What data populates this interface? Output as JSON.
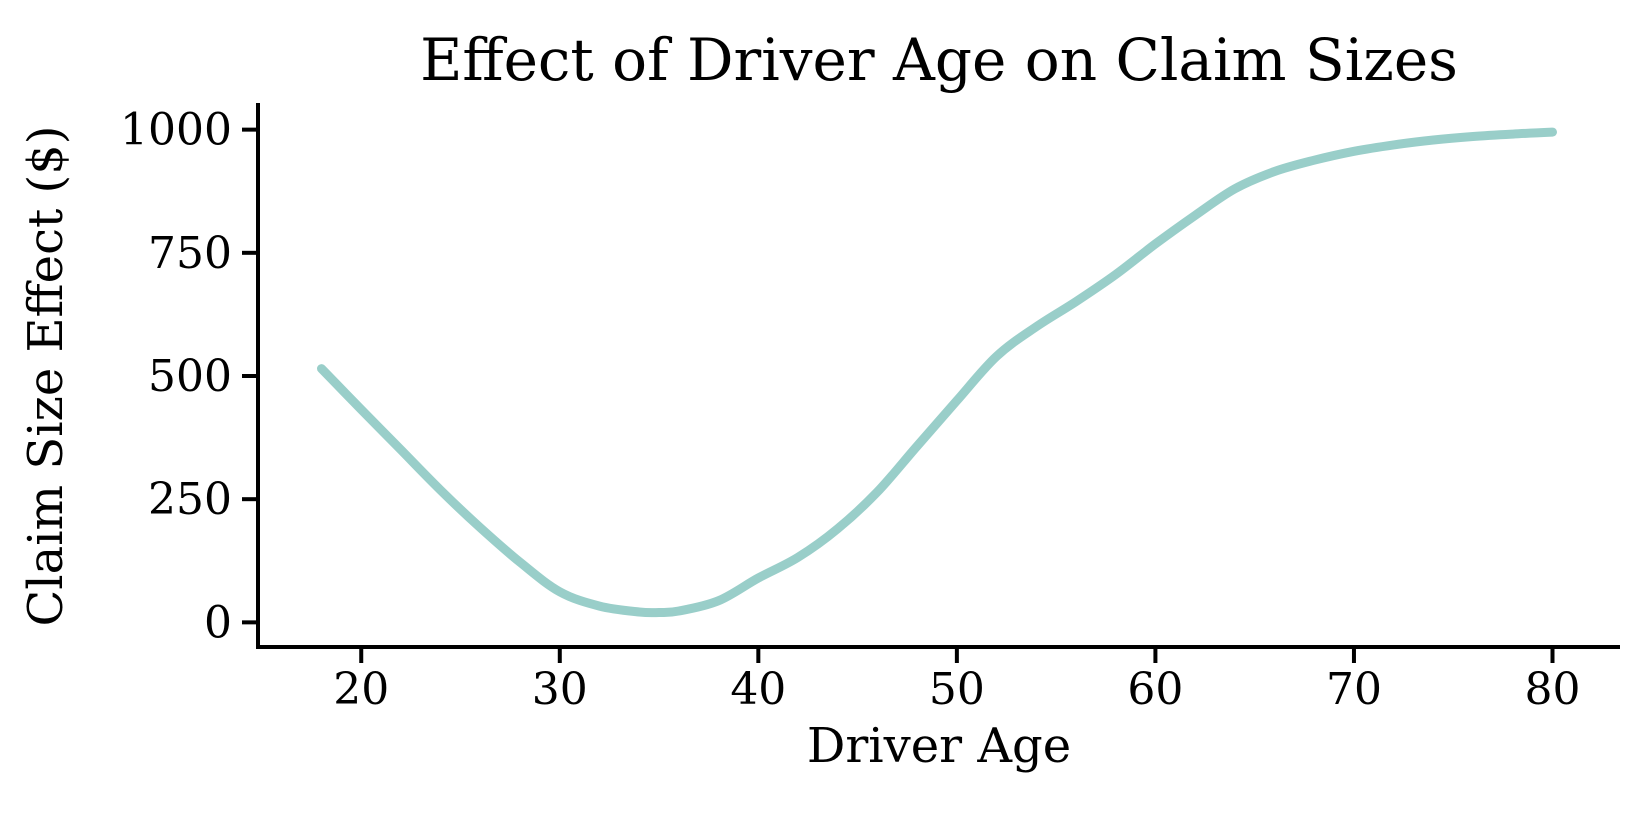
{
  "figure": {
    "title": "Effect of Driver Age on Claim Sizes",
    "xlabel": "Driver Age",
    "ylabel": "Claim Size Effect ($)"
  },
  "colors": {
    "line": "#99cec9",
    "axis": "#000000",
    "text": "#000000",
    "background": "#ffffff"
  },
  "chart_data": {
    "type": "line",
    "title": "Effect of Driver Age on Claim Sizes",
    "xlabel": "Driver Age",
    "ylabel": "Claim Size Effect ($)",
    "x_ticks": [
      20,
      30,
      40,
      50,
      60,
      70,
      80
    ],
    "y_ticks": [
      0,
      250,
      500,
      750,
      1000
    ],
    "xlim": [
      14.8,
      83.4
    ],
    "ylim": [
      -50,
      1050
    ],
    "grid": false,
    "legend_position": "none",
    "series": [
      {
        "name": "claim_size_effect_vs_age",
        "color": "#99cec9",
        "line_width": 9,
        "x": [
          18,
          20,
          22,
          24,
          26,
          28,
          30,
          32,
          34,
          35,
          36,
          38,
          40,
          42,
          44,
          46,
          48,
          50,
          52,
          54,
          56,
          58,
          60,
          62,
          64,
          66,
          68,
          70,
          72,
          74,
          76,
          78,
          80
        ],
        "y": [
          515,
          432,
          350,
          268,
          192,
          122,
          62,
          33,
          21,
          20,
          23,
          44,
          90,
          132,
          190,
          265,
          358,
          450,
          540,
          600,
          651,
          706,
          768,
          826,
          880,
          915,
          938,
          956,
          969,
          979,
          986,
          991,
          995
        ]
      }
    ],
    "annotations": {
      "curve_minimum_age": 35,
      "curve_minimum_value": 20,
      "curve_start": [
        18,
        515
      ],
      "curve_end": [
        80,
        995
      ]
    }
  }
}
